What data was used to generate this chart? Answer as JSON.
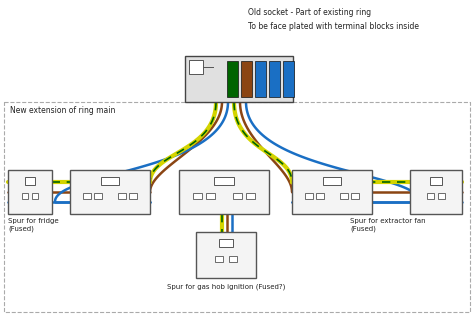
{
  "bg_color": "#ffffff",
  "labels": {
    "old_socket_line1": "Old socket - Part of existing ring",
    "old_socket_line2": "To be face plated with terminal blocks inside",
    "new_ext": "New extension of ring main",
    "fridge": "Spur for fridge\n(Fused)",
    "extractor": "Spur for extractor fan\n(Fused)",
    "gas_hob": "Spur for gas hob ignition (Fused?)"
  }
}
